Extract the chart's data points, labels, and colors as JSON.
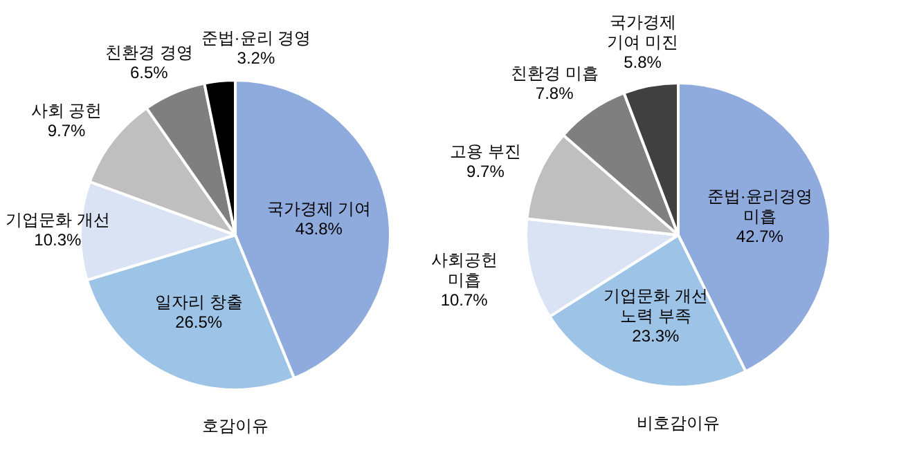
{
  "chart_data": [
    {
      "type": "pie",
      "title": "호감이유",
      "categories": [
        "국가경제 기여",
        "일자리 창출",
        "기업문화 개선",
        "사회 공헌",
        "친환경 경영",
        "준법·윤리 경영"
      ],
      "values": [
        43.8,
        26.5,
        10.3,
        9.7,
        6.5,
        3.2
      ],
      "value_labels": [
        "43.8%",
        "26.5%",
        "10.3%",
        "9.7%",
        "6.5%",
        "3.2%"
      ],
      "colors": [
        "#8faadc",
        "#9dc3e6",
        "#dae3f3",
        "#bfbfbf",
        "#7f7f7f",
        "#000000"
      ]
    },
    {
      "type": "pie",
      "title": "비호감이유",
      "categories": [
        "준법·윤리경영\n미흡",
        "기업문화 개선\n노력 부족",
        "사회공헌\n미흡",
        "고용 부진",
        "친환경 미흡",
        "국가경제\n기여 미진"
      ],
      "values": [
        42.7,
        23.3,
        10.7,
        9.7,
        7.8,
        5.8
      ],
      "value_labels": [
        "42.7%",
        "23.3%",
        "10.7%",
        "9.7%",
        "7.8%",
        "5.8%"
      ],
      "colors": [
        "#8faadc",
        "#9dc3e6",
        "#dae3f3",
        "#bfbfbf",
        "#7f7f7f",
        "#404040"
      ]
    }
  ]
}
